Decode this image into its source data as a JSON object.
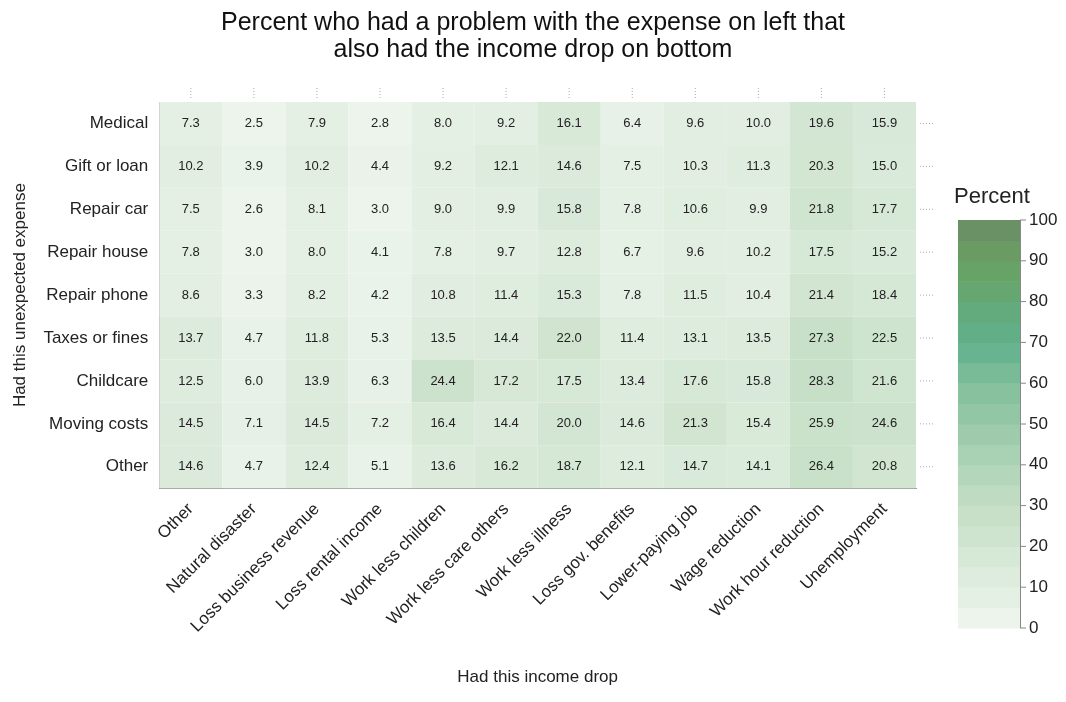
{
  "chart_data": {
    "type": "heatmap",
    "title": "Percent who had a problem with the expense on left that also had the income drop on bottom",
    "xlabel": "Had this income drop",
    "ylabel": "Had this unexpected expense",
    "clabel": "Percent",
    "categories": [
      "Other",
      "Natural disaster",
      "Loss business revenue",
      "Loss rental income",
      "Work less children",
      "Work less care others",
      "Work less illness",
      "Loss gov. benefits",
      "Lower-paying job",
      "Wage reduction",
      "Work hour reduction",
      "Unemployment"
    ],
    "y_categories": [
      "Medical",
      "Gift or loan",
      "Repair car",
      "Repair house",
      "Repair phone",
      "Taxes or fines",
      "Childcare",
      "Moving costs",
      "Other"
    ],
    "cells": [
      [
        7.3,
        2.5,
        7.9,
        2.8,
        8.0,
        9.2,
        16.1,
        6.4,
        9.6,
        10.0,
        19.6,
        15.9
      ],
      [
        10.2,
        3.9,
        10.2,
        4.4,
        9.2,
        12.1,
        14.6,
        7.5,
        10.3,
        11.3,
        20.3,
        15.0
      ],
      [
        7.5,
        2.6,
        8.1,
        3.0,
        9.0,
        9.9,
        15.8,
        7.8,
        10.6,
        9.9,
        21.8,
        17.7
      ],
      [
        7.8,
        3.0,
        8.0,
        4.1,
        7.8,
        9.7,
        12.8,
        6.7,
        9.6,
        10.2,
        17.5,
        15.2
      ],
      [
        8.6,
        3.3,
        8.2,
        4.2,
        10.8,
        11.4,
        15.3,
        7.8,
        11.5,
        10.4,
        21.4,
        18.4
      ],
      [
        13.7,
        4.7,
        11.8,
        5.3,
        13.5,
        14.4,
        22.0,
        11.4,
        13.1,
        13.5,
        27.3,
        22.5
      ],
      [
        12.5,
        6.0,
        13.9,
        6.3,
        24.4,
        17.2,
        17.5,
        13.4,
        17.6,
        15.8,
        28.3,
        21.6
      ],
      [
        14.5,
        7.1,
        14.5,
        7.2,
        16.4,
        14.4,
        20.0,
        14.6,
        21.3,
        15.4,
        25.9,
        24.6
      ],
      [
        14.6,
        4.7,
        12.4,
        5.1,
        13.6,
        16.2,
        18.7,
        12.1,
        14.7,
        14.1,
        26.4,
        20.8
      ]
    ],
    "cell_labels": [
      [
        "7.3",
        "2.5",
        "7.9",
        "2.8",
        "8.0",
        "9.2",
        "16.1",
        "6.4",
        "9.6",
        "10.0",
        "19.6",
        "15.9"
      ],
      [
        "10.2",
        "3.9",
        "10.2",
        "4.4",
        "9.2",
        "12.1",
        "14.6",
        "7.5",
        "10.3",
        "11.3",
        "20.3",
        "15.0"
      ],
      [
        "7.5",
        "2.6",
        "8.1",
        "3.0",
        "9.0",
        "9.9",
        "15.8",
        "7.8",
        "10.6",
        "9.9",
        "21.8",
        "17.7"
      ],
      [
        "7.8",
        "3.0",
        "8.0",
        "4.1",
        "7.8",
        "9.7",
        "12.8",
        "6.7",
        "9.6",
        "10.2",
        "17.5",
        "15.2"
      ],
      [
        "8.6",
        "3.3",
        "8.2",
        "4.2",
        "10.8",
        "11.4",
        "15.3",
        "7.8",
        "11.5",
        "10.4",
        "21.4",
        "18.4"
      ],
      [
        "13.7",
        "4.7",
        "11.8",
        "5.3",
        "13.5",
        "14.4",
        "22.0",
        "11.4",
        "13.1",
        "13.5",
        "27.3",
        "22.5"
      ],
      [
        "12.5",
        "6.0",
        "13.9",
        "6.3",
        "24.4",
        "17.2",
        "17.5",
        "13.4",
        "17.6",
        "15.8",
        "28.3",
        "21.6"
      ],
      [
        "14.5",
        "7.1",
        "14.5",
        "7.2",
        "16.4",
        "14.4",
        "20.0",
        "14.6",
        "21.3",
        "15.4",
        "25.9",
        "24.6"
      ],
      [
        "14.6",
        "4.7",
        "12.4",
        "5.1",
        "13.6",
        "16.2",
        "18.7",
        "12.1",
        "14.7",
        "14.1",
        "26.4",
        "20.8"
      ]
    ],
    "clim": [
      0,
      100
    ],
    "cticks": [
      0,
      10,
      20,
      30,
      40,
      50,
      60,
      70,
      80,
      90,
      100
    ],
    "data_labels": true,
    "grid": false,
    "legend": false
  }
}
